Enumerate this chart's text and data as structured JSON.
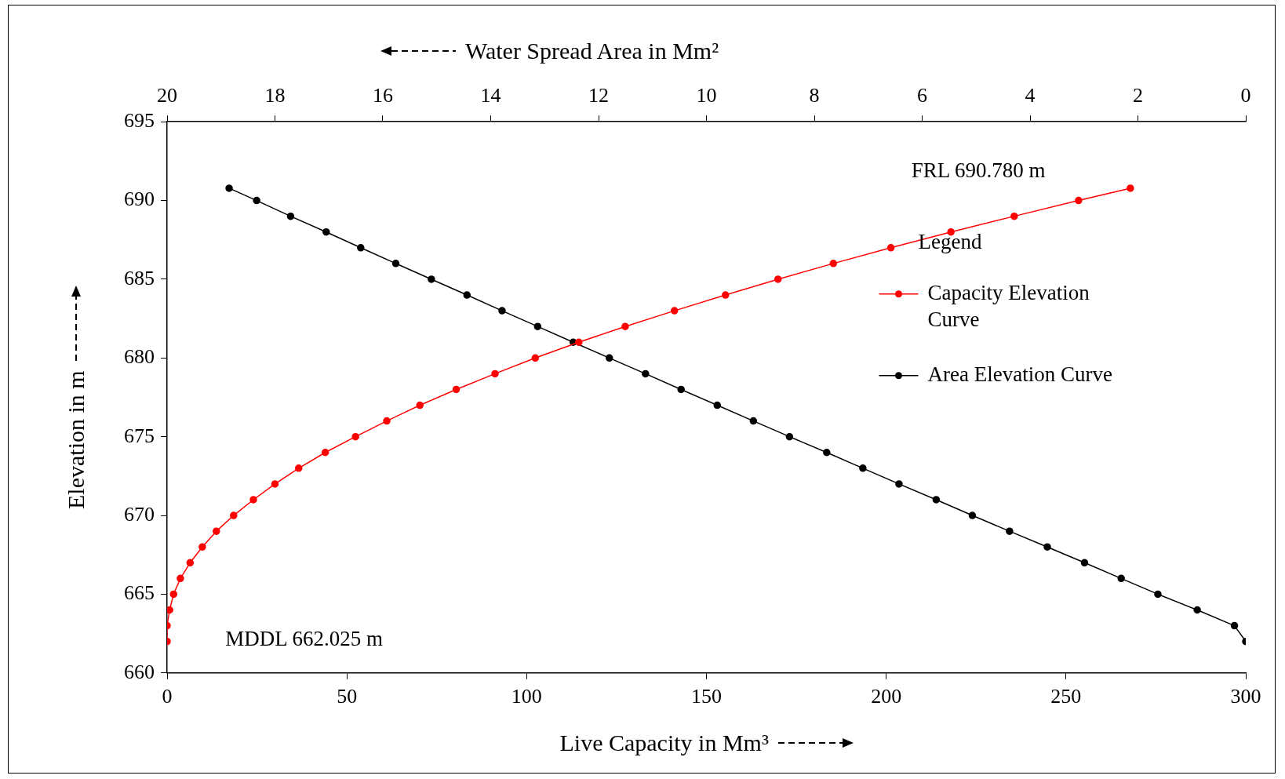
{
  "chart_data": {
    "type": "line",
    "xlabel": "Live Capacity in Mm³",
    "x2label": "Water Spread Area in Mm²",
    "ylabel": "Elevation in m",
    "xlim": [
      0,
      300
    ],
    "xticks": [
      0,
      50,
      100,
      150,
      200,
      250,
      300
    ],
    "x2lim": [
      20,
      0
    ],
    "x2ticks": [
      20,
      18,
      16,
      14,
      12,
      10,
      8,
      6,
      4,
      2,
      0
    ],
    "ylim": [
      660,
      695
    ],
    "yticks": [
      660,
      665,
      670,
      675,
      680,
      685,
      690,
      695
    ],
    "grid": false,
    "legend": "right",
    "legend_title": "Legend",
    "marker": "circle",
    "line_style": "solid",
    "annotations": [
      "FRL 690.780 m",
      "MDDL 662.025 m"
    ],
    "series": [
      {
        "name": "Capacity Elevation Curve",
        "color": "#ff0000",
        "x": [
          0,
          0,
          0.7,
          1.8,
          3.7,
          6.4,
          9.8,
          13.7,
          18.5,
          24.0,
          30.0,
          36.6,
          44.0,
          52.4,
          61.1,
          70.3,
          80.4,
          91.2,
          102.4,
          114.5,
          127.4,
          141.1,
          155.3,
          169.9,
          185.3,
          201.3,
          218.0,
          235.6,
          253.5,
          267.9
        ],
        "values": [
          662,
          663,
          664,
          665,
          666,
          667,
          668,
          669,
          670,
          671,
          672,
          673,
          674,
          675,
          676,
          677,
          678,
          679,
          680,
          681,
          682,
          683,
          684,
          685,
          686,
          687,
          688,
          689,
          690,
          690.78
        ]
      },
      {
        "name": "Area Elevation Curve",
        "color": "#000000",
        "axis": "x2",
        "x": [
          18.85,
          18.34,
          17.71,
          17.05,
          16.41,
          15.76,
          15.1,
          14.44,
          13.79,
          13.13,
          12.47,
          11.8,
          11.13,
          10.47,
          9.8,
          9.13,
          8.46,
          7.77,
          7.1,
          6.43,
          5.74,
          5.07,
          4.38,
          3.68,
          2.99,
          2.31,
          1.63,
          0.9,
          0.21,
          0
        ],
        "values": [
          690.78,
          690,
          689,
          688,
          687,
          686,
          685,
          684,
          683,
          682,
          681,
          680,
          679,
          678,
          677,
          676,
          675,
          674,
          673,
          672,
          671,
          670,
          669,
          668,
          667,
          666,
          665,
          664,
          663,
          662
        ]
      }
    ]
  }
}
